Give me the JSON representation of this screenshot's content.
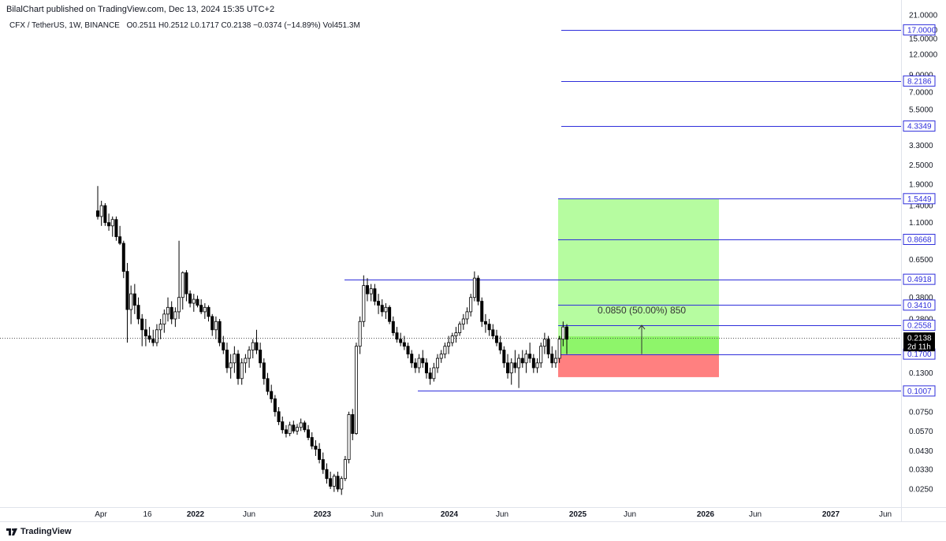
{
  "header": {
    "published": "BilalChart published on TradingView.com, Dec 13, 2024 15:35 UTC+2",
    "symbol": "CFX / TetherUS, 1W, BINANCE",
    "ohlc": "O0.2511  H0.2512  L0.1717  C0.2138  −0.0374 (−14.89%)  Vol451.3M"
  },
  "footer": {
    "brand": "TradingView"
  },
  "colors": {
    "level_line": "#2e2edb",
    "profit_zone": "#b6fca0",
    "profit_zone_strong": "#8ef56a",
    "loss_zone": "#ff8080",
    "candle": "#000000",
    "price_label_bg": "#000000"
  },
  "chart_data": {
    "type": "candlestick",
    "scale": "log",
    "x_ticks": [
      "Apr",
      "16",
      "2022",
      "Jun",
      "2023",
      "Jun",
      "2024",
      "Jun",
      "2025",
      "Jun",
      "2026",
      "Jun",
      "2027",
      "Jun"
    ],
    "x_tick_bold": [
      false,
      false,
      true,
      false,
      true,
      false,
      true,
      false,
      true,
      false,
      true,
      false,
      true,
      false
    ],
    "y_ticks": [
      21.0,
      17.0,
      15.0,
      12.0,
      9.0,
      7.0,
      5.5,
      4.3,
      3.3,
      2.5,
      1.9,
      1.4,
      1.1,
      0.85,
      0.65,
      0.48,
      0.38,
      0.28,
      0.21,
      0.17,
      0.13,
      0.1,
      0.075,
      0.057,
      0.043,
      0.033,
      0.025
    ],
    "y_tick_labels": [
      "21.0000",
      "17.0000",
      "15.0000",
      "12.0000",
      "9.0000",
      "7.0000",
      "5.5000",
      "4.3000",
      "3.3000",
      "2.5000",
      "1.9000",
      "1.4000",
      "1.1000",
      "0.8500",
      "0.6500",
      "0.4800",
      "0.3800",
      "0.2800",
      "0.2100",
      "0.1700",
      "0.1300",
      "0.1000",
      "0.0750",
      "0.0570",
      "0.0430",
      "0.0330",
      "0.0250"
    ],
    "levels": [
      {
        "value": 17.0,
        "label": "17.0000"
      },
      {
        "value": 8.2186,
        "label": "8.2186"
      },
      {
        "value": 4.3349,
        "label": "4.3349"
      },
      {
        "value": 1.5449,
        "label": "1.5449"
      },
      {
        "value": 0.8668,
        "label": "0.8668"
      },
      {
        "value": 0.4918,
        "label": "0.4918"
      },
      {
        "value": 0.341,
        "label": "0.3410"
      },
      {
        "value": 0.2558,
        "label": "0.2558"
      },
      {
        "value": 0.17,
        "label": "0.1700"
      },
      {
        "value": 0.1007,
        "label": "0.1007"
      }
    ],
    "current_price": {
      "value": 0.2138,
      "label": "0.2138",
      "countdown": "2d 11h"
    },
    "position": {
      "entry": 0.17,
      "target": 1.5449,
      "stop": 0.1225,
      "measure_top": 0.2558,
      "measure_label": "0.0850 (50.00%) 850"
    },
    "candles": [
      [
        1.3,
        1.85,
        1.15,
        1.2
      ],
      [
        1.2,
        1.5,
        1.05,
        1.4
      ],
      [
        1.4,
        1.45,
        1.05,
        1.1
      ],
      [
        1.1,
        1.25,
        0.98,
        1.05
      ],
      [
        1.05,
        1.2,
        0.9,
        1.15
      ],
      [
        1.15,
        1.2,
        0.85,
        0.9
      ],
      [
        0.9,
        1.05,
        0.8,
        0.82
      ],
      [
        0.82,
        0.85,
        0.5,
        0.55
      ],
      [
        0.55,
        0.62,
        0.2,
        0.32
      ],
      [
        0.32,
        0.45,
        0.26,
        0.4
      ],
      [
        0.4,
        0.46,
        0.3,
        0.34
      ],
      [
        0.34,
        0.38,
        0.26,
        0.28
      ],
      [
        0.28,
        0.3,
        0.19,
        0.24
      ],
      [
        0.24,
        0.28,
        0.19,
        0.22
      ],
      [
        0.22,
        0.25,
        0.2,
        0.21
      ],
      [
        0.21,
        0.24,
        0.19,
        0.2
      ],
      [
        0.2,
        0.26,
        0.19,
        0.24
      ],
      [
        0.24,
        0.28,
        0.21,
        0.26
      ],
      [
        0.26,
        0.32,
        0.23,
        0.3
      ],
      [
        0.3,
        0.38,
        0.27,
        0.33
      ],
      [
        0.33,
        0.36,
        0.26,
        0.28
      ],
      [
        0.28,
        0.33,
        0.25,
        0.31
      ],
      [
        0.31,
        0.85,
        0.28,
        0.38
      ],
      [
        0.38,
        0.55,
        0.32,
        0.54
      ],
      [
        0.54,
        0.56,
        0.36,
        0.4
      ],
      [
        0.4,
        0.42,
        0.33,
        0.35
      ],
      [
        0.35,
        0.4,
        0.31,
        0.37
      ],
      [
        0.37,
        0.39,
        0.33,
        0.34
      ],
      [
        0.34,
        0.37,
        0.3,
        0.31
      ],
      [
        0.31,
        0.35,
        0.28,
        0.33
      ],
      [
        0.33,
        0.34,
        0.27,
        0.29
      ],
      [
        0.29,
        0.3,
        0.22,
        0.24
      ],
      [
        0.24,
        0.29,
        0.21,
        0.27
      ],
      [
        0.27,
        0.28,
        0.19,
        0.2
      ],
      [
        0.2,
        0.22,
        0.17,
        0.18
      ],
      [
        0.18,
        0.2,
        0.13,
        0.14
      ],
      [
        0.14,
        0.17,
        0.12,
        0.15
      ],
      [
        0.15,
        0.19,
        0.13,
        0.17
      ],
      [
        0.17,
        0.18,
        0.11,
        0.12
      ],
      [
        0.12,
        0.16,
        0.11,
        0.15
      ],
      [
        0.15,
        0.17,
        0.13,
        0.16
      ],
      [
        0.16,
        0.19,
        0.14,
        0.18
      ],
      [
        0.18,
        0.21,
        0.16,
        0.2
      ],
      [
        0.2,
        0.24,
        0.17,
        0.18
      ],
      [
        0.18,
        0.2,
        0.14,
        0.15
      ],
      [
        0.15,
        0.16,
        0.11,
        0.12
      ],
      [
        0.12,
        0.13,
        0.095,
        0.1
      ],
      [
        0.1,
        0.11,
        0.085,
        0.09
      ],
      [
        0.09,
        0.095,
        0.07,
        0.075
      ],
      [
        0.075,
        0.08,
        0.062,
        0.065
      ],
      [
        0.065,
        0.07,
        0.055,
        0.058
      ],
      [
        0.058,
        0.062,
        0.052,
        0.055
      ],
      [
        0.055,
        0.065,
        0.053,
        0.062
      ],
      [
        0.062,
        0.066,
        0.055,
        0.057
      ],
      [
        0.057,
        0.063,
        0.054,
        0.06
      ],
      [
        0.06,
        0.068,
        0.057,
        0.064
      ],
      [
        0.064,
        0.066,
        0.056,
        0.058
      ],
      [
        0.058,
        0.062,
        0.05,
        0.052
      ],
      [
        0.052,
        0.056,
        0.044,
        0.046
      ],
      [
        0.046,
        0.05,
        0.04,
        0.044
      ],
      [
        0.044,
        0.048,
        0.036,
        0.038
      ],
      [
        0.038,
        0.042,
        0.031,
        0.033
      ],
      [
        0.033,
        0.036,
        0.027,
        0.029
      ],
      [
        0.029,
        0.032,
        0.025,
        0.026
      ],
      [
        0.026,
        0.031,
        0.024,
        0.03
      ],
      [
        0.03,
        0.032,
        0.024,
        0.025
      ],
      [
        0.025,
        0.03,
        0.023,
        0.029
      ],
      [
        0.029,
        0.04,
        0.028,
        0.038
      ],
      [
        0.038,
        0.075,
        0.036,
        0.072
      ],
      [
        0.072,
        0.078,
        0.05,
        0.055
      ],
      [
        0.055,
        0.2,
        0.054,
        0.19
      ],
      [
        0.19,
        0.29,
        0.17,
        0.27
      ],
      [
        0.27,
        0.52,
        0.25,
        0.45
      ],
      [
        0.45,
        0.5,
        0.36,
        0.4
      ],
      [
        0.4,
        0.46,
        0.36,
        0.43
      ],
      [
        0.43,
        0.46,
        0.34,
        0.36
      ],
      [
        0.36,
        0.4,
        0.3,
        0.34
      ],
      [
        0.34,
        0.37,
        0.29,
        0.31
      ],
      [
        0.31,
        0.35,
        0.28,
        0.33
      ],
      [
        0.33,
        0.34,
        0.26,
        0.27
      ],
      [
        0.27,
        0.29,
        0.22,
        0.23
      ],
      [
        0.23,
        0.25,
        0.2,
        0.21
      ],
      [
        0.21,
        0.23,
        0.19,
        0.2
      ],
      [
        0.2,
        0.22,
        0.18,
        0.19
      ],
      [
        0.19,
        0.2,
        0.16,
        0.17
      ],
      [
        0.17,
        0.18,
        0.14,
        0.15
      ],
      [
        0.15,
        0.16,
        0.13,
        0.14
      ],
      [
        0.14,
        0.17,
        0.13,
        0.16
      ],
      [
        0.16,
        0.18,
        0.14,
        0.15
      ],
      [
        0.15,
        0.16,
        0.12,
        0.13
      ],
      [
        0.13,
        0.14,
        0.11,
        0.12
      ],
      [
        0.12,
        0.15,
        0.115,
        0.14
      ],
      [
        0.14,
        0.17,
        0.13,
        0.16
      ],
      [
        0.16,
        0.18,
        0.15,
        0.17
      ],
      [
        0.17,
        0.2,
        0.16,
        0.19
      ],
      [
        0.19,
        0.22,
        0.17,
        0.2
      ],
      [
        0.2,
        0.23,
        0.19,
        0.22
      ],
      [
        0.22,
        0.25,
        0.2,
        0.23
      ],
      [
        0.23,
        0.27,
        0.22,
        0.26
      ],
      [
        0.26,
        0.3,
        0.24,
        0.28
      ],
      [
        0.28,
        0.33,
        0.26,
        0.31
      ],
      [
        0.31,
        0.4,
        0.29,
        0.38
      ],
      [
        0.38,
        0.55,
        0.36,
        0.5
      ],
      [
        0.5,
        0.52,
        0.34,
        0.36
      ],
      [
        0.36,
        0.38,
        0.25,
        0.27
      ],
      [
        0.27,
        0.3,
        0.23,
        0.26
      ],
      [
        0.26,
        0.28,
        0.22,
        0.24
      ],
      [
        0.24,
        0.26,
        0.21,
        0.22
      ],
      [
        0.22,
        0.24,
        0.19,
        0.2
      ],
      [
        0.2,
        0.22,
        0.17,
        0.18
      ],
      [
        0.18,
        0.19,
        0.14,
        0.15
      ],
      [
        0.15,
        0.17,
        0.12,
        0.13
      ],
      [
        0.13,
        0.16,
        0.11,
        0.15
      ],
      [
        0.15,
        0.18,
        0.13,
        0.14
      ],
      [
        0.14,
        0.17,
        0.105,
        0.16
      ],
      [
        0.16,
        0.18,
        0.14,
        0.15
      ],
      [
        0.15,
        0.18,
        0.13,
        0.17
      ],
      [
        0.17,
        0.2,
        0.15,
        0.16
      ],
      [
        0.16,
        0.17,
        0.13,
        0.14
      ],
      [
        0.14,
        0.16,
        0.13,
        0.15
      ],
      [
        0.15,
        0.2,
        0.14,
        0.19
      ],
      [
        0.19,
        0.23,
        0.17,
        0.21
      ],
      [
        0.21,
        0.22,
        0.16,
        0.17
      ],
      [
        0.17,
        0.19,
        0.14,
        0.15
      ],
      [
        0.15,
        0.18,
        0.14,
        0.16
      ],
      [
        0.16,
        0.22,
        0.15,
        0.21
      ],
      [
        0.21,
        0.27,
        0.19,
        0.25
      ],
      [
        0.25,
        0.26,
        0.17,
        0.21
      ]
    ]
  }
}
